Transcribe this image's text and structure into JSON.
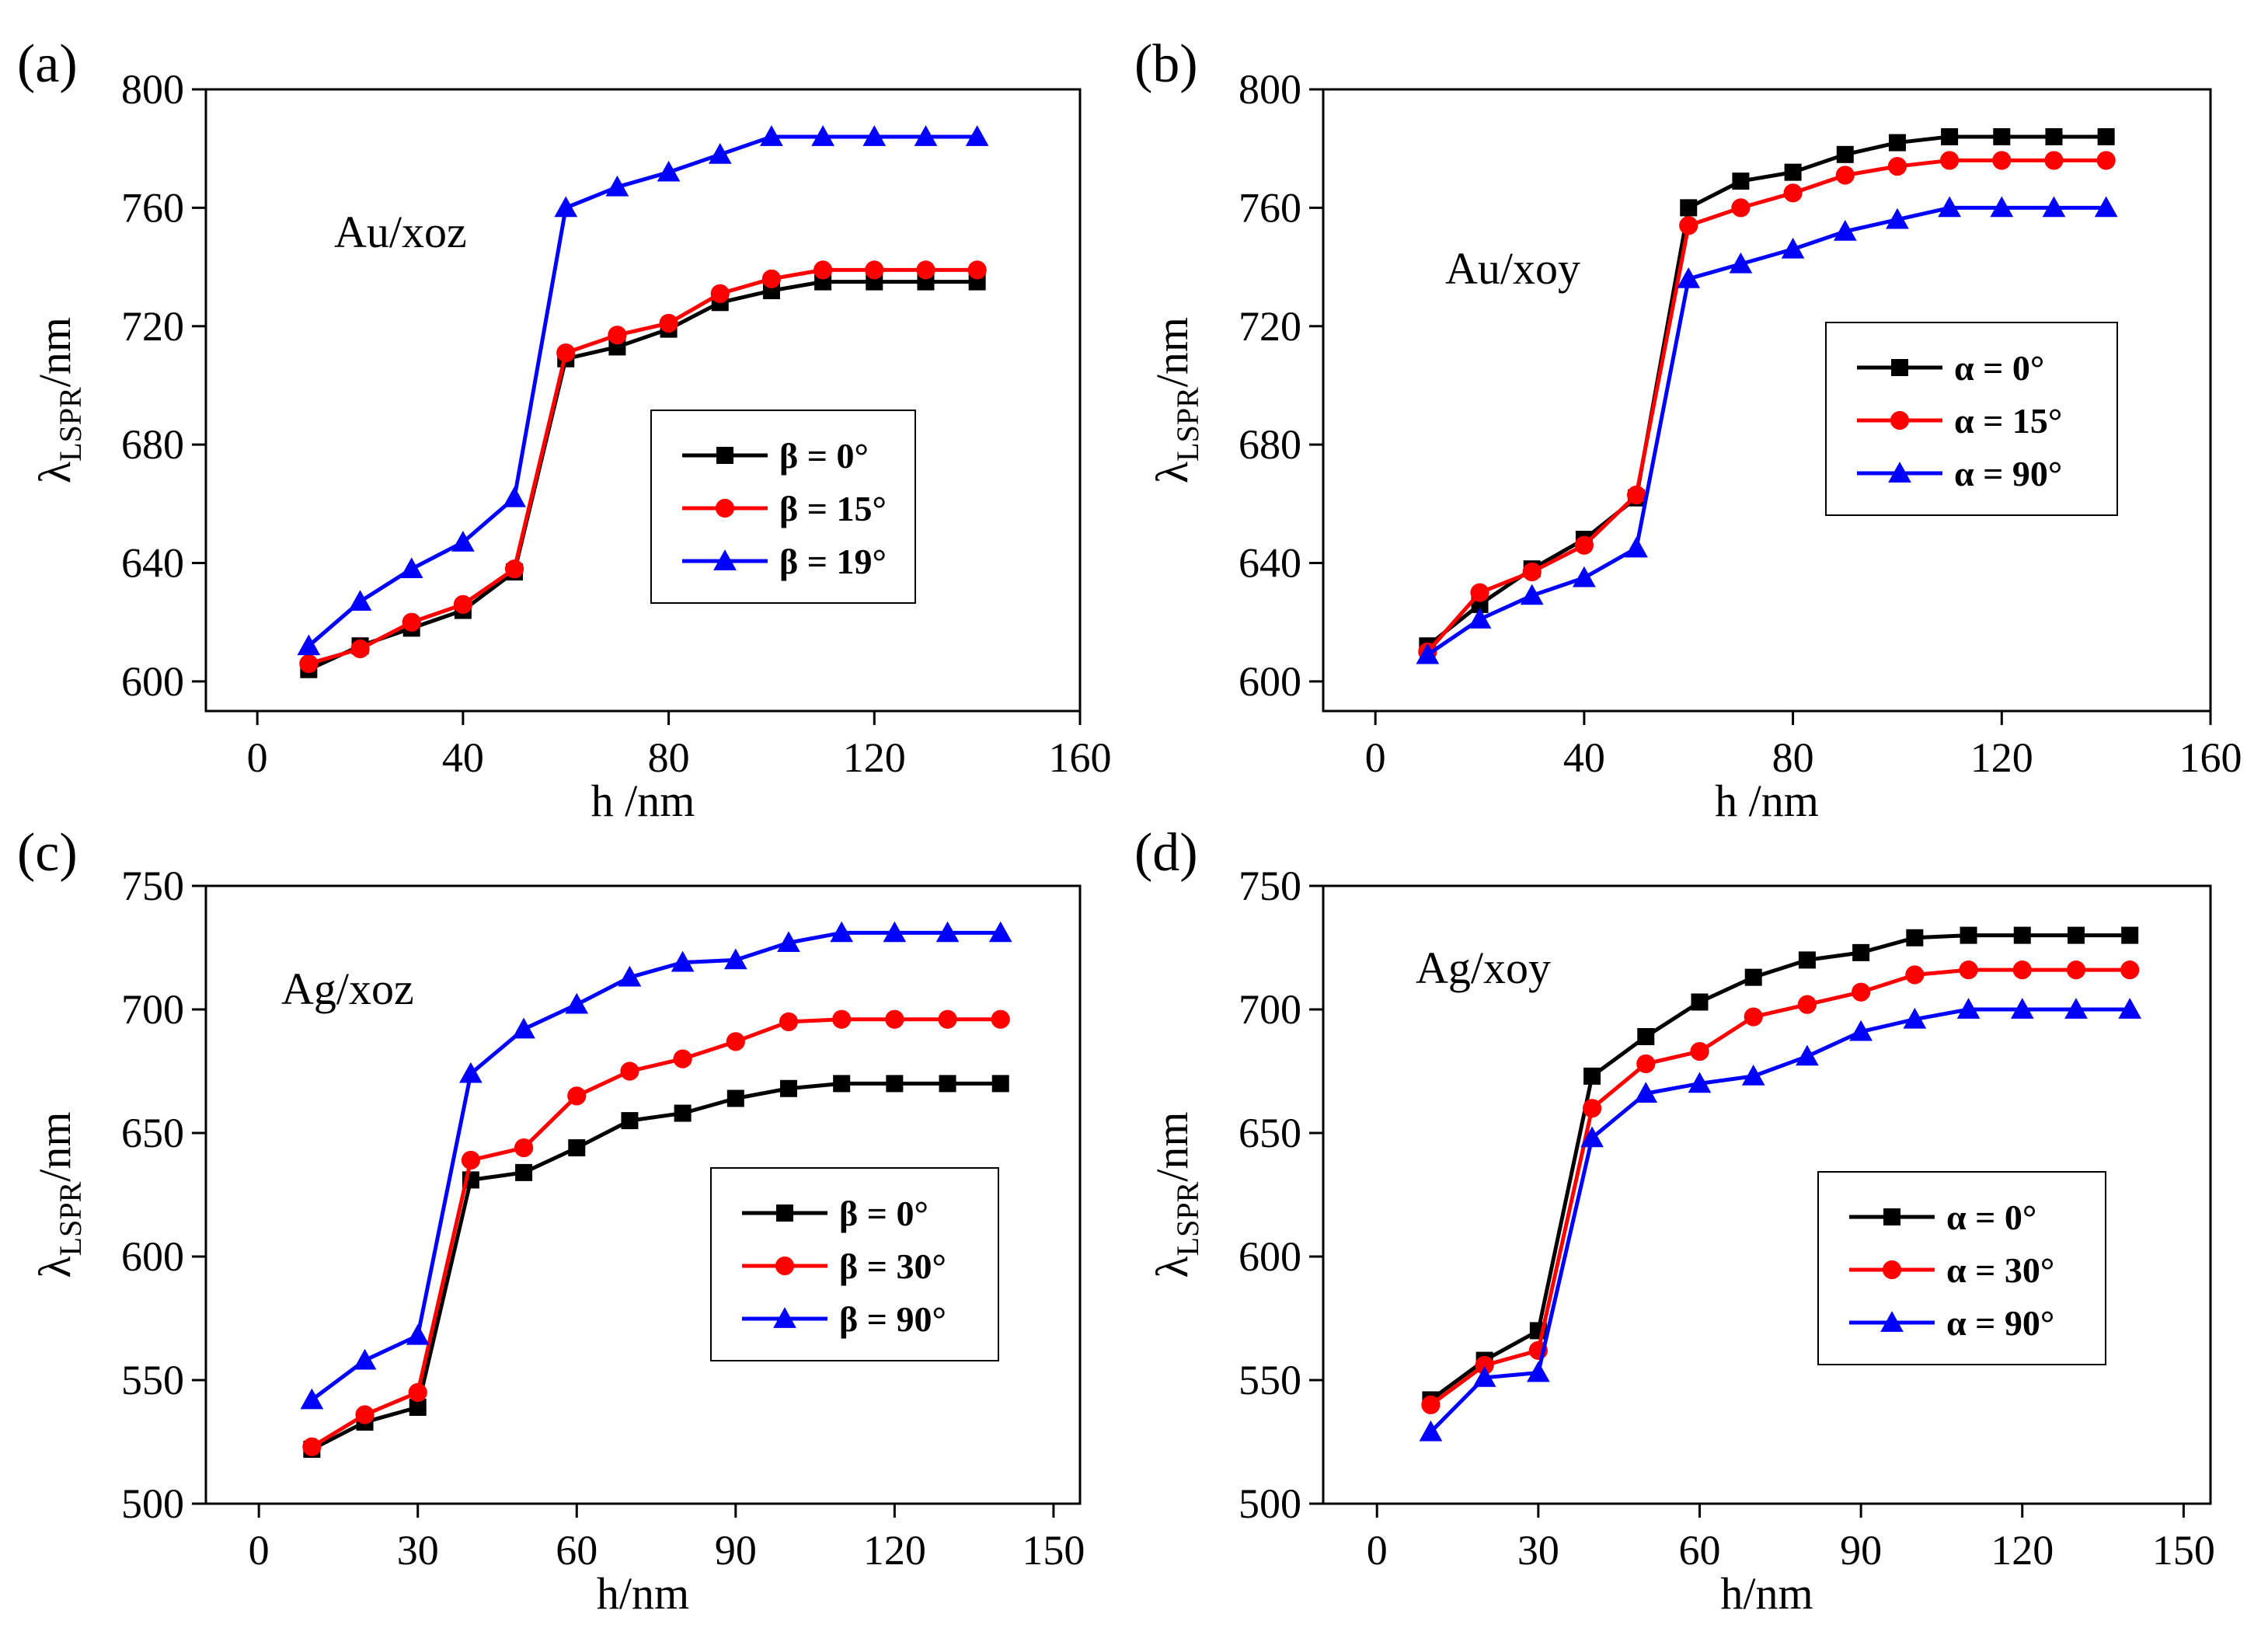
{
  "chart_data": [
    {
      "panel_label": "(a)",
      "type": "line",
      "annotation": "Au/xoz",
      "xlabel": "h /nm",
      "ylabel_main": "λ",
      "ylabel_sub": "LSPR",
      "ylabel_unit": "/nm",
      "xlim": [
        -10,
        160
      ],
      "ylim": [
        590,
        800
      ],
      "xticks": [
        0,
        40,
        80,
        120,
        160
      ],
      "yticks": [
        600,
        640,
        680,
        720,
        760,
        800
      ],
      "legend_position": "center-right",
      "x": [
        10,
        20,
        30,
        40,
        50,
        60,
        70,
        80,
        90,
        100,
        110,
        120,
        130,
        140
      ],
      "series": [
        {
          "name": "β = 0°",
          "color": "#000000",
          "marker": "square",
          "values": [
            604,
            612,
            618,
            624,
            637,
            709,
            713,
            719,
            728,
            732,
            735,
            735,
            735,
            735
          ]
        },
        {
          "name": "β = 15°",
          "color": "#ff0000",
          "marker": "circle",
          "values": [
            606,
            611,
            620,
            626,
            638,
            711,
            717,
            721,
            731,
            736,
            739,
            739,
            739,
            739
          ]
        },
        {
          "name": "β = 19°",
          "color": "#0000ff",
          "marker": "triangle",
          "values": [
            612,
            627,
            638,
            647,
            662,
            760,
            767,
            772,
            778,
            784,
            784,
            784,
            784,
            784
          ]
        }
      ]
    },
    {
      "panel_label": "(b)",
      "type": "line",
      "annotation": "Au/xoy",
      "xlabel": "h /nm",
      "ylabel_main": "λ",
      "ylabel_sub": "LSPR",
      "ylabel_unit": "/nm",
      "xlim": [
        -10,
        160
      ],
      "ylim": [
        590,
        800
      ],
      "xticks": [
        0,
        40,
        80,
        120,
        160
      ],
      "yticks": [
        600,
        640,
        680,
        720,
        760,
        800
      ],
      "legend_position": "center-right",
      "x": [
        10,
        20,
        30,
        40,
        50,
        60,
        70,
        80,
        90,
        100,
        110,
        120,
        130,
        140
      ],
      "series": [
        {
          "name": "α = 0°",
          "color": "#000000",
          "marker": "square",
          "values": [
            612,
            626,
            638,
            648,
            662,
            760,
            769,
            772,
            778,
            782,
            784,
            784,
            784,
            784
          ]
        },
        {
          "name": "α = 15°",
          "color": "#ff0000",
          "marker": "circle",
          "values": [
            610,
            630,
            637,
            646,
            663,
            754,
            760,
            765,
            771,
            774,
            776,
            776,
            776,
            776
          ]
        },
        {
          "name": "α = 90°",
          "color": "#0000ff",
          "marker": "triangle",
          "values": [
            609,
            621,
            629,
            635,
            645,
            736,
            741,
            746,
            752,
            756,
            760,
            760,
            760,
            760
          ]
        }
      ]
    },
    {
      "panel_label": "(c)",
      "type": "line",
      "annotation": "Ag/xoz",
      "xlabel": "h/nm",
      "ylabel_main": "λ",
      "ylabel_sub": "LSPR",
      "ylabel_unit": "/nm",
      "xlim": [
        -10,
        155
      ],
      "ylim": [
        500,
        750
      ],
      "xticks": [
        0,
        30,
        60,
        90,
        120,
        150
      ],
      "yticks": [
        500,
        550,
        600,
        650,
        700,
        750
      ],
      "legend_position": "lower-right",
      "x": [
        10,
        20,
        30,
        40,
        50,
        60,
        70,
        80,
        90,
        100,
        110,
        120,
        130,
        140
      ],
      "series": [
        {
          "name": "β = 0°",
          "color": "#000000",
          "marker": "square",
          "values": [
            522,
            533,
            539,
            631,
            634,
            644,
            655,
            658,
            664,
            668,
            670,
            670,
            670,
            670
          ]
        },
        {
          "name": "β = 30°",
          "color": "#ff0000",
          "marker": "circle",
          "values": [
            523,
            536,
            545,
            639,
            644,
            665,
            675,
            680,
            687,
            695,
            696,
            696,
            696,
            696
          ]
        },
        {
          "name": "β = 90°",
          "color": "#0000ff",
          "marker": "triangle",
          "values": [
            542,
            558,
            568,
            674,
            692,
            702,
            713,
            719,
            720,
            727,
            731,
            731,
            731,
            731
          ]
        }
      ]
    },
    {
      "panel_label": "(d)",
      "type": "line",
      "annotation": "Ag/xoy",
      "xlabel": "h/nm",
      "ylabel_main": "λ",
      "ylabel_sub": "LSPR",
      "ylabel_unit": "/nm",
      "xlim": [
        -10,
        155
      ],
      "ylim": [
        500,
        750
      ],
      "xticks": [
        0,
        30,
        60,
        90,
        120,
        150
      ],
      "yticks": [
        500,
        550,
        600,
        650,
        700,
        750
      ],
      "legend_position": "lower-right",
      "x": [
        10,
        20,
        30,
        40,
        50,
        60,
        70,
        80,
        90,
        100,
        110,
        120,
        130,
        140
      ],
      "series": [
        {
          "name": "α = 0°",
          "color": "#000000",
          "marker": "square",
          "values": [
            542,
            558,
            570,
            673,
            689,
            703,
            713,
            720,
            723,
            729,
            730,
            730,
            730,
            730
          ]
        },
        {
          "name": "α = 30°",
          "color": "#ff0000",
          "marker": "circle",
          "values": [
            540,
            556,
            562,
            660,
            678,
            683,
            697,
            702,
            707,
            714,
            716,
            716,
            716,
            716
          ]
        },
        {
          "name": "α = 90°",
          "color": "#0000ff",
          "marker": "triangle",
          "values": [
            529,
            551,
            553,
            648,
            666,
            670,
            673,
            681,
            691,
            696,
            700,
            700,
            700,
            700
          ]
        }
      ]
    }
  ]
}
